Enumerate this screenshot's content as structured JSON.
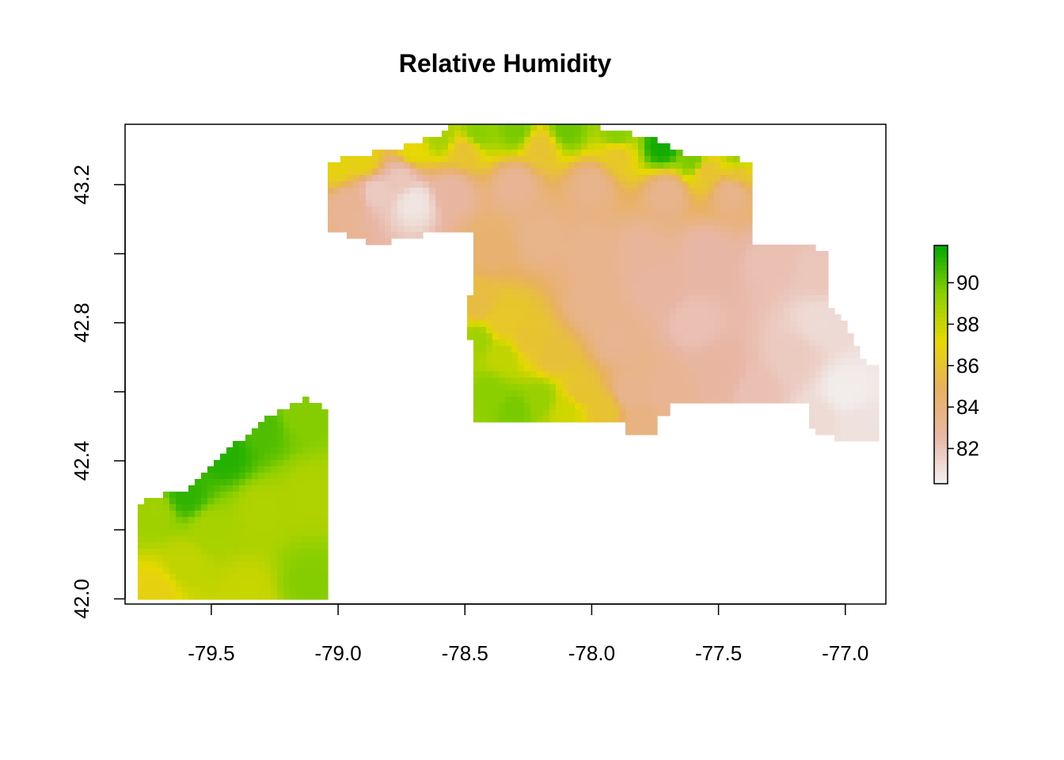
{
  "chart_data": {
    "type": "heatmap",
    "title": "Relative Humidity",
    "xlabel": "",
    "ylabel": "",
    "xlim": [
      -79.84,
      -76.84
    ],
    "ylim": [
      41.985,
      43.375
    ],
    "x_ticks": [
      -79.5,
      -79.0,
      -78.5,
      -78.0,
      -77.5,
      -77.0
    ],
    "x_tick_labels": [
      "-79.5",
      "-79.0",
      "-78.5",
      "-78.0",
      "-77.5",
      "-77.0"
    ],
    "y_ticks": [
      42.0,
      42.2,
      42.4,
      42.6,
      42.8,
      43.0,
      43.2
    ],
    "y_tick_labels": [
      "42.0",
      "",
      "42.4",
      "",
      "42.8",
      "",
      "43.2"
    ],
    "grid": false,
    "legend": {
      "position": "right",
      "range": [
        80.3,
        91.8
      ],
      "ticks": [
        82,
        84,
        86,
        88,
        90
      ],
      "tick_labels": [
        "82",
        "84",
        "86",
        "88",
        "90"
      ]
    },
    "color_scale": [
      "#f2f2f2",
      "#e8b6a6",
      "#e8b060",
      "#e6d800",
      "#8ccf00",
      "#00a600"
    ],
    "regions": [
      {
        "name": "southwest",
        "polygon": [
          [
            -79.78,
            41.99
          ],
          [
            -79.05,
            41.99
          ],
          [
            -79.05,
            42.54
          ],
          [
            -79.08,
            42.56
          ],
          [
            -79.12,
            42.58
          ],
          [
            -79.25,
            42.54
          ],
          [
            -79.42,
            42.44
          ],
          [
            -79.6,
            42.32
          ],
          [
            -79.78,
            42.28
          ]
        ],
        "samples": [
          [
            -79.72,
            42.25,
            89.0
          ],
          [
            -79.6,
            42.3,
            91.0
          ],
          [
            -79.45,
            42.42,
            91.2
          ],
          [
            -79.3,
            42.5,
            90.5
          ],
          [
            -79.15,
            42.54,
            89.6
          ],
          [
            -79.1,
            42.3,
            88.6
          ],
          [
            -79.3,
            42.25,
            88.6
          ],
          [
            -79.6,
            42.1,
            88.2
          ],
          [
            -79.72,
            42.02,
            86.8
          ],
          [
            -79.35,
            42.02,
            88.0
          ],
          [
            -79.12,
            42.05,
            89.6
          ],
          [
            -79.5,
            42.2,
            88.8
          ]
        ]
      },
      {
        "name": "northeast",
        "polygon": [
          [
            -79.04,
            43.06
          ],
          [
            -79.04,
            43.26
          ],
          [
            -79.01,
            43.27
          ],
          [
            -78.95,
            43.28
          ],
          [
            -78.8,
            43.3
          ],
          [
            -78.6,
            43.34
          ],
          [
            -78.55,
            43.37
          ],
          [
            -78.0,
            43.37
          ],
          [
            -77.9,
            43.36
          ],
          [
            -77.75,
            43.33
          ],
          [
            -77.6,
            43.28
          ],
          [
            -77.45,
            43.28
          ],
          [
            -77.38,
            43.27
          ],
          [
            -77.38,
            43.03
          ],
          [
            -77.2,
            43.03
          ],
          [
            -77.06,
            43.01
          ],
          [
            -77.06,
            42.85
          ],
          [
            -77.0,
            42.8
          ],
          [
            -76.93,
            42.7
          ],
          [
            -76.88,
            42.67
          ],
          [
            -76.88,
            42.45
          ],
          [
            -77.0,
            42.45
          ],
          [
            -77.07,
            42.48
          ],
          [
            -77.15,
            42.49
          ],
          [
            -77.15,
            42.57
          ],
          [
            -77.7,
            42.57
          ],
          [
            -77.7,
            42.54
          ],
          [
            -77.73,
            42.53
          ],
          [
            -77.73,
            42.47
          ],
          [
            -77.86,
            42.47
          ],
          [
            -77.86,
            42.52
          ],
          [
            -78.46,
            42.52
          ],
          [
            -78.46,
            42.76
          ],
          [
            -78.5,
            42.76
          ],
          [
            -78.5,
            42.88
          ],
          [
            -78.46,
            42.88
          ],
          [
            -78.46,
            43.06
          ],
          [
            -78.53,
            43.07
          ],
          [
            -78.63,
            43.06
          ],
          [
            -78.7,
            43.05
          ],
          [
            -78.78,
            43.05
          ],
          [
            -78.8,
            43.02
          ],
          [
            -78.88,
            43.02
          ],
          [
            -78.9,
            43.05
          ],
          [
            -79.04,
            43.06
          ]
        ],
        "samples": [
          [
            -79.0,
            43.25,
            86.8
          ],
          [
            -78.9,
            43.27,
            86.8
          ],
          [
            -78.7,
            43.3,
            87.2
          ],
          [
            -78.6,
            43.34,
            88.8
          ],
          [
            -78.45,
            43.35,
            89.5
          ],
          [
            -78.3,
            43.36,
            89.8
          ],
          [
            -78.1,
            43.36,
            90.0
          ],
          [
            -77.9,
            43.34,
            89.5
          ],
          [
            -77.72,
            43.31,
            91.5
          ],
          [
            -77.6,
            43.27,
            89.8
          ],
          [
            -77.42,
            43.27,
            89.0
          ],
          [
            -78.5,
            43.3,
            86.0
          ],
          [
            -78.2,
            43.31,
            86.0
          ],
          [
            -77.9,
            43.29,
            86.2
          ],
          [
            -77.55,
            43.24,
            86.0
          ],
          [
            -77.42,
            43.24,
            86.0
          ],
          [
            -78.75,
            43.22,
            82.0
          ],
          [
            -78.7,
            43.15,
            80.8
          ],
          [
            -78.85,
            43.18,
            81.8
          ],
          [
            -78.95,
            43.15,
            83.2
          ],
          [
            -78.55,
            43.18,
            82.8
          ],
          [
            -78.3,
            43.2,
            83.2
          ],
          [
            -78.0,
            43.2,
            83.5
          ],
          [
            -77.7,
            43.18,
            83.4
          ],
          [
            -77.45,
            43.18,
            83.5
          ],
          [
            -78.4,
            43.02,
            84.4
          ],
          [
            -78.2,
            43.05,
            83.5
          ],
          [
            -78.0,
            43.0,
            83.4
          ],
          [
            -77.8,
            43.0,
            83.0
          ],
          [
            -77.55,
            43.0,
            82.6
          ],
          [
            -77.3,
            42.98,
            82.2
          ],
          [
            -77.1,
            42.95,
            82.0
          ],
          [
            -78.45,
            42.85,
            85.6
          ],
          [
            -78.35,
            42.8,
            86.2
          ],
          [
            -78.25,
            42.75,
            86.0
          ],
          [
            -78.15,
            42.7,
            85.8
          ],
          [
            -78.05,
            42.6,
            86.0
          ],
          [
            -77.95,
            42.55,
            86.0
          ],
          [
            -78.45,
            42.75,
            89.0
          ],
          [
            -78.4,
            42.6,
            89.5
          ],
          [
            -78.3,
            42.55,
            89.8
          ],
          [
            -78.2,
            42.58,
            89.2
          ],
          [
            -78.35,
            42.7,
            88.2
          ],
          [
            -78.1,
            42.55,
            87.8
          ],
          [
            -77.85,
            42.6,
            83.4
          ],
          [
            -77.8,
            42.5,
            83.8
          ],
          [
            -77.7,
            42.6,
            83.2
          ],
          [
            -77.9,
            42.75,
            83.3
          ],
          [
            -77.6,
            42.8,
            82.2
          ],
          [
            -77.5,
            42.65,
            82.8
          ],
          [
            -77.35,
            42.6,
            82.2
          ],
          [
            -77.2,
            42.7,
            81.8
          ],
          [
            -77.1,
            42.8,
            81.2
          ],
          [
            -77.0,
            42.6,
            80.5
          ],
          [
            -76.95,
            42.5,
            80.9
          ],
          [
            -77.1,
            42.52,
            81.2
          ],
          [
            -78.0,
            42.85,
            83.4
          ],
          [
            -77.75,
            42.9,
            82.8
          ]
        ]
      }
    ]
  }
}
